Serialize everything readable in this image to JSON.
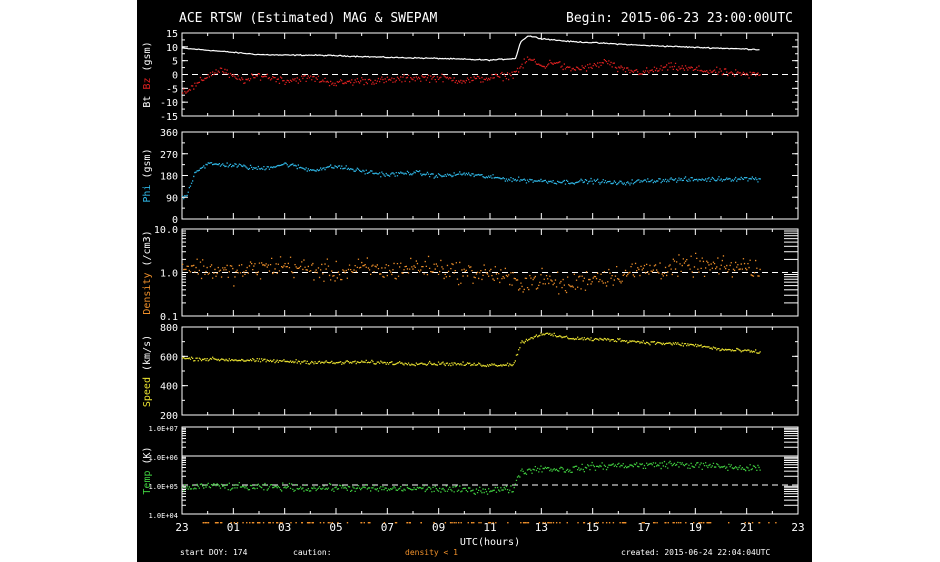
{
  "header": {
    "title": "ACE RTSW (Estimated) MAG & SWEPAM",
    "begin": "Begin: 2015-06-23 23:00:00UTC"
  },
  "footer": {
    "start_doy": "start DOY: 174",
    "caution": "caution:",
    "density_note": "density < 1",
    "created": "created: 2015-06-24 22:04:04UTC"
  },
  "colors": {
    "bt": "#ffffff",
    "bz": "#e02020",
    "phi": "#2fb8e8",
    "density": "#f0902a",
    "speed": "#e8e030",
    "temp": "#40d040",
    "density_note": "#f0902a",
    "axis": "#ffffff"
  },
  "chart_data": {
    "type": "scatter",
    "x_axis": {
      "label": "UTC(hours)",
      "ticks": [
        "23",
        "01",
        "03",
        "05",
        "07",
        "09",
        "11",
        "13",
        "15",
        "17",
        "19",
        "21",
        "23"
      ],
      "range_hours": [
        0,
        24
      ]
    },
    "panels": [
      {
        "name": "bt-bz",
        "ylabel_parts": [
          {
            "text": "Bt",
            "color": "#ffffff"
          },
          {
            "text": " ",
            "color": "#ffffff"
          },
          {
            "text": "Bz",
            "color": "#e02020"
          },
          {
            "text": " (gsm)",
            "color": "#ffffff"
          }
        ],
        "scale": "linear",
        "ylim": [
          -15,
          15
        ],
        "yticks": [
          "15",
          "10",
          "5",
          "0",
          "-5",
          "-10",
          "-15"
        ],
        "ytick_values": [
          15,
          10,
          5,
          0,
          -5,
          -10,
          -15
        ],
        "dashed_line": 0,
        "series": [
          {
            "name": "Bt",
            "color": "#ffffff",
            "style": "line",
            "jitter": 0.3,
            "points": [
              [
                0,
                9.5
              ],
              [
                1,
                8.8
              ],
              [
                2,
                8.0
              ],
              [
                3,
                7.2
              ],
              [
                4,
                7.0
              ],
              [
                5,
                7.0
              ],
              [
                6,
                6.8
              ],
              [
                7,
                6.5
              ],
              [
                8,
                6.2
              ],
              [
                9,
                6.0
              ],
              [
                10,
                5.8
              ],
              [
                11,
                5.5
              ],
              [
                12,
                5.2
              ],
              [
                13,
                5.8
              ],
              [
                13.2,
                12
              ],
              [
                13.5,
                14
              ],
              [
                14,
                13
              ],
              [
                15,
                12
              ],
              [
                16,
                11.5
              ],
              [
                17,
                11
              ],
              [
                18,
                10.5
              ],
              [
                19,
                10.2
              ],
              [
                20,
                9.8
              ],
              [
                21,
                9.5
              ],
              [
                22,
                9.2
              ],
              [
                22.5,
                9.0
              ]
            ]
          },
          {
            "name": "Bz",
            "color": "#e02020",
            "style": "scatter",
            "jitter": 2.0,
            "points": [
              [
                0,
                -6
              ],
              [
                0.5,
                -4
              ],
              [
                1,
                0
              ],
              [
                1.5,
                2
              ],
              [
                2,
                -1
              ],
              [
                2.5,
                -2
              ],
              [
                3,
                0
              ],
              [
                3.5,
                -1
              ],
              [
                4,
                -2
              ],
              [
                5,
                -1
              ],
              [
                6,
                -3
              ],
              [
                7,
                -2
              ],
              [
                8,
                -2
              ],
              [
                9,
                -1
              ],
              [
                10,
                -1
              ],
              [
                11,
                -2
              ],
              [
                12,
                -1
              ],
              [
                12.8,
                0
              ],
              [
                13.2,
                3
              ],
              [
                13.5,
                6
              ],
              [
                14,
                3
              ],
              [
                14.5,
                5
              ],
              [
                15,
                2
              ],
              [
                16,
                3
              ],
              [
                16.5,
                5
              ],
              [
                17,
                2
              ],
              [
                18,
                1
              ],
              [
                19,
                3
              ],
              [
                20,
                2
              ],
              [
                21,
                1
              ],
              [
                22,
                0
              ],
              [
                22.5,
                0.5
              ]
            ]
          }
        ]
      },
      {
        "name": "phi",
        "ylabel_parts": [
          {
            "text": "Phi",
            "color": "#2fb8e8"
          },
          {
            "text": " (gsm)",
            "color": "#ffffff"
          }
        ],
        "scale": "linear",
        "ylim": [
          0,
          360
        ],
        "yticks": [
          "360",
          "270",
          "180",
          "90",
          "0"
        ],
        "ytick_values": [
          360,
          270,
          180,
          90,
          0
        ],
        "series": [
          {
            "name": "Phi",
            "color": "#2fb8e8",
            "style": "scatter",
            "jitter": 14,
            "points": [
              [
                0,
                90
              ],
              [
                0.2,
                110
              ],
              [
                0.5,
                200
              ],
              [
                1,
                230
              ],
              [
                2,
                225
              ],
              [
                3,
                210
              ],
              [
                4,
                230
              ],
              [
                5,
                205
              ],
              [
                6,
                220
              ],
              [
                7,
                200
              ],
              [
                8,
                185
              ],
              [
                9,
                195
              ],
              [
                10,
                180
              ],
              [
                11,
                190
              ],
              [
                12,
                175
              ],
              [
                13,
                165
              ],
              [
                14,
                160
              ],
              [
                15,
                155
              ],
              [
                16,
                160
              ],
              [
                17,
                150
              ],
              [
                18,
                160
              ],
              [
                19,
                165
              ],
              [
                20,
                165
              ],
              [
                21,
                168
              ],
              [
                22,
                170
              ],
              [
                22.5,
                168
              ]
            ]
          }
        ]
      },
      {
        "name": "density",
        "ylabel_parts": [
          {
            "text": "Density",
            "color": "#f0902a"
          },
          {
            "text": " (/cm3)",
            "color": "#ffffff"
          }
        ],
        "scale": "log",
        "ylim": [
          0.1,
          10
        ],
        "yticks": [
          "10.0",
          "1.0",
          "0.1"
        ],
        "ytick_values": [
          10,
          1,
          0.1
        ],
        "dashed_line": 1,
        "series": [
          {
            "name": "Density",
            "color": "#f0902a",
            "style": "scatter",
            "jitter": 0.35,
            "points": [
              [
                0,
                1.5
              ],
              [
                1,
                1.2
              ],
              [
                2,
                1.0
              ],
              [
                3,
                1.3
              ],
              [
                4,
                1.5
              ],
              [
                5,
                1.2
              ],
              [
                6,
                1.0
              ],
              [
                7,
                1.3
              ],
              [
                8,
                1.1
              ],
              [
                9,
                1.4
              ],
              [
                10,
                1.3
              ],
              [
                11,
                1.0
              ],
              [
                12,
                1.0
              ],
              [
                13,
                0.6
              ],
              [
                14,
                0.7
              ],
              [
                15,
                0.5
              ],
              [
                16,
                0.8
              ],
              [
                17,
                0.9
              ],
              [
                18,
                1.2
              ],
              [
                19,
                1.3
              ],
              [
                20,
                1.5
              ],
              [
                21,
                1.3
              ],
              [
                22,
                1.4
              ],
              [
                22.5,
                1.2
              ]
            ]
          }
        ]
      },
      {
        "name": "speed",
        "ylabel_parts": [
          {
            "text": "Speed",
            "color": "#e8e030"
          },
          {
            "text": " (km/s)",
            "color": "#ffffff"
          }
        ],
        "scale": "linear",
        "ylim": [
          200,
          800
        ],
        "yticks": [
          "800",
          "600",
          "400",
          "200"
        ],
        "ytick_values": [
          800,
          600,
          400,
          200
        ],
        "series": [
          {
            "name": "Speed",
            "color": "#e8e030",
            "style": "scatter",
            "jitter": 18,
            "points": [
              [
                0,
                590
              ],
              [
                1,
                585
              ],
              [
                2,
                580
              ],
              [
                3,
                575
              ],
              [
                4,
                570
              ],
              [
                5,
                565
              ],
              [
                6,
                560
              ],
              [
                7,
                565
              ],
              [
                8,
                560
              ],
              [
                9,
                555
              ],
              [
                10,
                555
              ],
              [
                11,
                550
              ],
              [
                12,
                545
              ],
              [
                12.9,
                550
              ],
              [
                13.2,
                700
              ],
              [
                14,
                760
              ],
              [
                15,
                730
              ],
              [
                16,
                720
              ],
              [
                17,
                715
              ],
              [
                18,
                700
              ],
              [
                19,
                690
              ],
              [
                20,
                680
              ],
              [
                21,
                650
              ],
              [
                22,
                640
              ],
              [
                22.5,
                630
              ]
            ]
          }
        ]
      },
      {
        "name": "temp",
        "ylabel_parts": [
          {
            "text": "Temp",
            "color": "#40d040"
          },
          {
            "text": " (K)",
            "color": "#ffffff"
          }
        ],
        "scale": "log",
        "ylim": [
          10000,
          10000000
        ],
        "yticks": [
          "1.0E+07",
          "1.0E+06",
          "1.0E+05",
          "1.0E+04"
        ],
        "ytick_values": [
          10000000,
          1000000,
          100000,
          10000
        ],
        "solid_line": 1000000,
        "dashed_line": 100000,
        "series": [
          {
            "name": "Temp",
            "color": "#40d040",
            "style": "scatter",
            "jitter": 0.18,
            "points": [
              [
                0,
                80000
              ],
              [
                1,
                100000
              ],
              [
                2,
                90000
              ],
              [
                3,
                85000
              ],
              [
                4,
                90000
              ],
              [
                5,
                80000
              ],
              [
                6,
                85000
              ],
              [
                7,
                80000
              ],
              [
                8,
                75000
              ],
              [
                9,
                80000
              ],
              [
                10,
                75000
              ],
              [
                11,
                70000
              ],
              [
                12,
                70000
              ],
              [
                12.9,
                75000
              ],
              [
                13.2,
                300000
              ],
              [
                14,
                400000
              ],
              [
                15,
                350000
              ],
              [
                16,
                450000
              ],
              [
                17,
                500000
              ],
              [
                18,
                500000
              ],
              [
                19,
                550000
              ],
              [
                20,
                500000
              ],
              [
                21,
                450000
              ],
              [
                22,
                400000
              ],
              [
                22.5,
                380000
              ]
            ]
          }
        ]
      }
    ]
  }
}
